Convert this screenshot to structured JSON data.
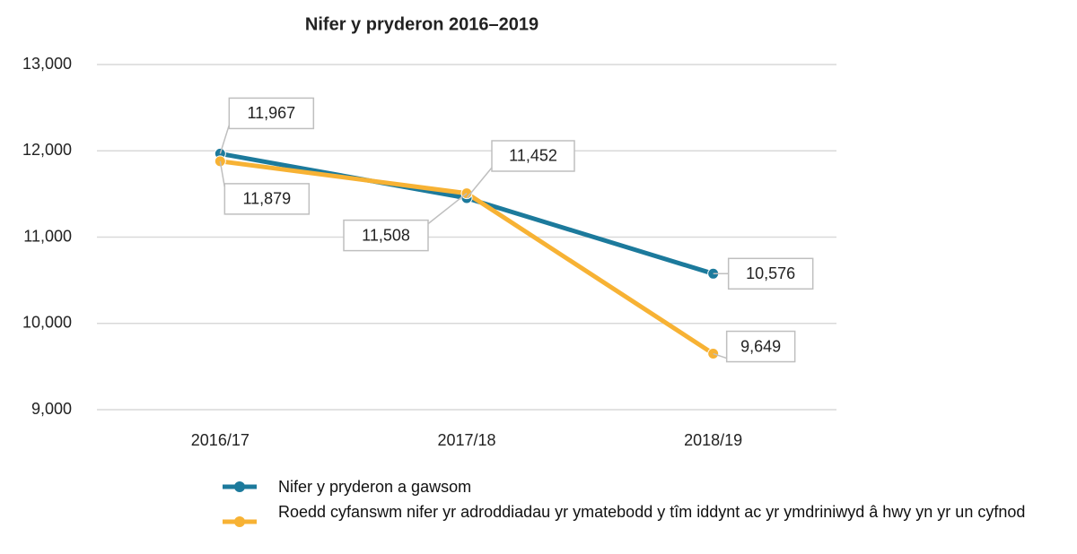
{
  "chart_data": {
    "type": "line",
    "title": "Nifer y pryderon 2016–2019",
    "categories": [
      "2016/17",
      "2017/18",
      "2018/19"
    ],
    "series": [
      {
        "name": "Nifer y pryderon a gawsom",
        "color": "#1c7a9c",
        "values": [
          11967,
          11452,
          10576
        ],
        "value_labels": [
          "11,967",
          "11,452",
          "10,576"
        ]
      },
      {
        "name": "Roedd cyfanswm nifer yr adroddiadau yr ymatebodd y tîm iddynt ac yr ymdriniwyd â hwy yn yr un cyfnod",
        "color": "#f7b234",
        "values": [
          11879,
          11508,
          9649
        ],
        "value_labels": [
          "11,879",
          "11,508",
          "9,649"
        ]
      }
    ],
    "ylim": [
      9000,
      13000
    ],
    "yticks": [
      {
        "value": 9000,
        "label": "9,000"
      },
      {
        "value": 10000,
        "label": "10,000"
      },
      {
        "value": 11000,
        "label": "11,000"
      },
      {
        "value": 12000,
        "label": "12,000"
      },
      {
        "value": 13000,
        "label": "13,000"
      }
    ],
    "grid": true,
    "legend": "bottom"
  }
}
